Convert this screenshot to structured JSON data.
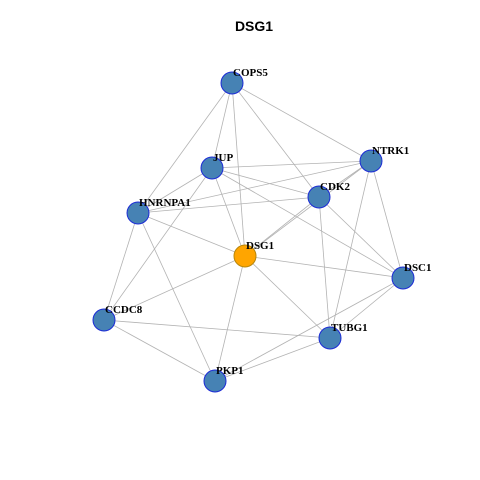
{
  "title": "DSG1",
  "nodes": [
    {
      "label": "COPS5"
    },
    {
      "label": "JUP"
    },
    {
      "label": "NTRK1"
    },
    {
      "label": "CDK2"
    },
    {
      "label": "HNRNPA1"
    },
    {
      "label": "DSG1"
    },
    {
      "label": "DSC1"
    },
    {
      "label": "CCDC8"
    },
    {
      "label": "TUBG1"
    },
    {
      "label": "PKP1"
    }
  ]
}
